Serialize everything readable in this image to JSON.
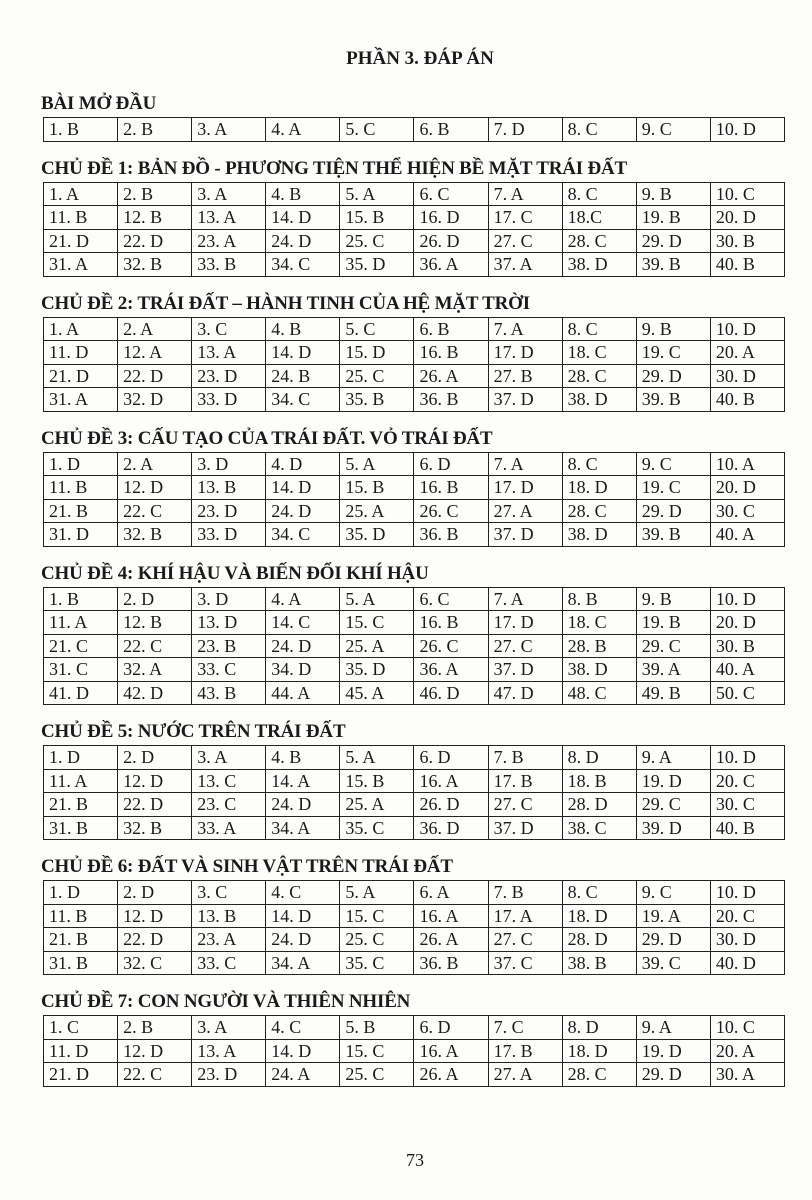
{
  "title": "PHẦN 3. ĐÁP ÁN",
  "page_number": "73",
  "sections": [
    {
      "heading": "BÀI MỞ ĐẦU",
      "rows": [
        [
          "1. B",
          "2. B",
          "3. A",
          "4. A",
          "5. C",
          "6. B",
          "7. D",
          "8. C",
          "9. C",
          "10. D"
        ]
      ]
    },
    {
      "heading": "CHỦ ĐỀ 1: BẢN ĐỒ - PHƯƠNG TIỆN THỂ HIỆN BỀ MẶT TRÁI ĐẤT",
      "rows": [
        [
          "1. A",
          "2. B",
          "3. A",
          "4. B",
          "5. A",
          "6. C",
          "7. A",
          "8. C",
          "9. B",
          "10. C"
        ],
        [
          "11. B",
          "12. B",
          "13. A",
          "14. D",
          "15. B",
          "16. D",
          "17. C",
          "18.C",
          "19. B",
          "20. D"
        ],
        [
          "21. D",
          "22. D",
          "23. A",
          "24. D",
          "25. C",
          "26. D",
          "27. C",
          "28. C",
          "29. D",
          "30. B"
        ],
        [
          "31. A",
          "32. B",
          "33. B",
          "34. C",
          "35. D",
          "36. A",
          "37. A",
          "38. D",
          "39. B",
          "40. B"
        ]
      ]
    },
    {
      "heading": "CHỦ ĐỀ 2: TRÁI ĐẤT – HÀNH TINH CỦA HỆ MẶT TRỜI",
      "rows": [
        [
          "1. A",
          "2. A",
          "3. C",
          "4. B",
          "5. C",
          "6. B",
          "7. A",
          "8. C",
          "9. B",
          "10. D"
        ],
        [
          "11. D",
          "12. A",
          "13. A",
          "14. D",
          "15. D",
          "16. B",
          "17. D",
          "18. C",
          "19. C",
          "20. A"
        ],
        [
          "21. D",
          "22. D",
          "23. D",
          "24. B",
          "25. C",
          "26. A",
          "27. B",
          "28. C",
          "29. D",
          "30. D"
        ],
        [
          "31. A",
          "32. D",
          "33. D",
          "34. C",
          "35. B",
          "36. B",
          "37. D",
          "38. D",
          "39. B",
          "40. B"
        ]
      ]
    },
    {
      "heading": "CHỦ ĐỀ 3: CẤU TẠO CỦA TRÁI ĐẤT. VỎ TRÁI ĐẤT",
      "rows": [
        [
          "1. D",
          "2. A",
          "3. D",
          "4. D",
          "5. A",
          "6. D",
          "7. A",
          "8. C",
          "9. C",
          "10. A"
        ],
        [
          "11. B",
          "12. D",
          "13. B",
          "14. D",
          "15. B",
          "16. B",
          "17. D",
          "18. D",
          "19. C",
          "20. D"
        ],
        [
          "21. B",
          "22. C",
          "23. D",
          "24. D",
          "25. A",
          "26. C",
          "27. A",
          "28. C",
          "29. D",
          "30. C"
        ],
        [
          "31. D",
          "32. B",
          "33. D",
          "34. C",
          "35. D",
          "36. B",
          "37. D",
          "38. D",
          "39. B",
          "40. A"
        ]
      ]
    },
    {
      "heading": "CHỦ ĐỀ 4: KHÍ HẬU VÀ BIẾN ĐỔI KHÍ HẬU",
      "rows": [
        [
          "1. B",
          "2. D",
          "3. D",
          "4. A",
          "5. A",
          "6. C",
          "7. A",
          "8. B",
          "9. B",
          "10. D"
        ],
        [
          "11. A",
          "12. B",
          "13. D",
          "14. C",
          "15. C",
          "16. B",
          "17. D",
          "18. C",
          "19. B",
          "20. D"
        ],
        [
          "21. C",
          "22. C",
          "23. B",
          "24. D",
          "25. A",
          "26. C",
          "27. C",
          "28. B",
          "29. C",
          "30. B"
        ],
        [
          "31. C",
          "32. A",
          "33. C",
          "34. D",
          "35. D",
          "36. A",
          "37. D",
          "38. D",
          "39. A",
          "40. A"
        ],
        [
          "41. D",
          "42. D",
          "43. B",
          "44. A",
          "45. A",
          "46. D",
          "47. D",
          "48. C",
          "49. B",
          "50. C"
        ]
      ]
    },
    {
      "heading": "CHỦ ĐỀ 5: NƯỚC TRÊN TRÁI ĐẤT",
      "rows": [
        [
          "1. D",
          "2. D",
          "3. A",
          "4. B",
          "5. A",
          "6. D",
          "7. B",
          "8. D",
          "9. A",
          "10. D"
        ],
        [
          "11. A",
          "12. D",
          "13. C",
          "14. A",
          "15. B",
          "16. A",
          "17. B",
          "18. B",
          "19. D",
          "20. C"
        ],
        [
          "21. B",
          "22. D",
          "23. C",
          "24. D",
          "25. A",
          "26. D",
          "27. C",
          "28. D",
          "29. C",
          "30. C"
        ],
        [
          "31. B",
          "32. B",
          "33. A",
          "34. A",
          "35. C",
          "36. D",
          "37. D",
          "38. C",
          "39. D",
          "40. B"
        ]
      ]
    },
    {
      "heading": "CHỦ ĐỀ 6: ĐẤT VÀ SINH VẬT TRÊN TRÁI ĐẤT",
      "rows": [
        [
          "1. D",
          "2. D",
          "3. C",
          "4. C",
          "5. A",
          "6. A",
          "7. B",
          "8. C",
          "9. C",
          "10. D"
        ],
        [
          "11. B",
          "12. D",
          "13. B",
          "14. D",
          "15. C",
          "16. A",
          "17. A",
          "18. D",
          "19. A",
          "20. C"
        ],
        [
          "21. B",
          "22. D",
          "23. A",
          "24. D",
          "25. C",
          "26. A",
          "27. C",
          "28. D",
          "29. D",
          "30. D"
        ],
        [
          "31. B",
          "32. C",
          "33. C",
          "34. A",
          "35. C",
          "36. B",
          "37. C",
          "38. B",
          "39. C",
          "40. D"
        ]
      ]
    },
    {
      "heading": "CHỦ ĐỀ 7: CON NGƯỜI VÀ THIÊN NHIÊN",
      "rows": [
        [
          "1. C",
          "2. B",
          "3. A",
          "4. C",
          "5. B",
          "6. D",
          "7. C",
          "8. D",
          "9. A",
          "10. C"
        ],
        [
          "11. D",
          "12. D",
          "13. A",
          "14. D",
          "15. C",
          "16. A",
          "17. B",
          "18. D",
          "19. D",
          "20. A"
        ],
        [
          "21. D",
          "22. C",
          "23. D",
          "24. A",
          "25. C",
          "26. A",
          "27. A",
          "28. C",
          "29. D",
          "30. A"
        ]
      ]
    }
  ]
}
